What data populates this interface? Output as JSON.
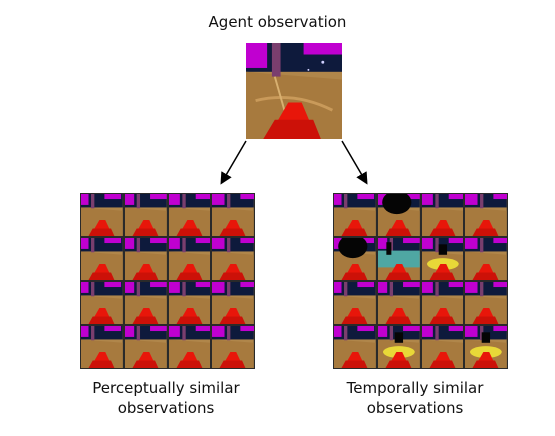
{
  "top_title": "Agent observation",
  "left_caption": [
    "Perceptually similar",
    "observations"
  ],
  "right_caption": [
    "Temporally similar",
    "observations"
  ],
  "colors": {
    "sky": "#0e1a3c",
    "magenta": "#c000d0",
    "floor": "#b0864a",
    "red_object": "#e8160a",
    "pole": "#7a3e6e",
    "yellow_object": "#e8d838",
    "black": "#050505",
    "teal": "#4fa7a3"
  },
  "tiles": {
    "left": [
      "std",
      "std",
      "std",
      "std",
      "std",
      "std",
      "std",
      "std",
      "std",
      "std",
      "std",
      "std",
      "std",
      "std",
      "std",
      "std"
    ],
    "right": [
      "std",
      "dark",
      "std",
      "std",
      "dark",
      "teal",
      "yellow",
      "std",
      "std",
      "std",
      "std",
      "std",
      "std",
      "yellow",
      "std",
      "yellow"
    ]
  }
}
